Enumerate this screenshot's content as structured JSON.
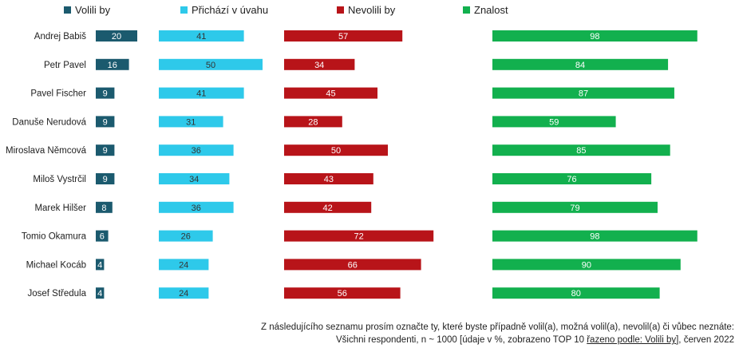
{
  "chart_data": {
    "type": "bar",
    "layout": "horizontal-grouped-panels",
    "categories": [
      "Andrej Babiš",
      "Petr Pavel",
      "Pavel Fischer",
      "Danuše Nerudová",
      "Miroslava Němcová",
      "Miloš Vystrčil",
      "Marek Hilšer",
      "Tomio Okamura",
      "Michael Kocáb",
      "Josef Středula"
    ],
    "series": [
      {
        "name": "Volili by",
        "color": "#1b5a6e",
        "values": [
          20,
          16,
          9,
          9,
          9,
          9,
          8,
          6,
          4,
          4
        ]
      },
      {
        "name": "Přichází v úvahu",
        "color": "#2ec9ea",
        "values": [
          41,
          50,
          41,
          31,
          36,
          34,
          36,
          26,
          24,
          24
        ]
      },
      {
        "name": "Nevolili by",
        "color": "#b81419",
        "values": [
          57,
          34,
          45,
          28,
          50,
          43,
          42,
          72,
          66,
          56
        ]
      },
      {
        "name": "Znalost",
        "color": "#12b04e",
        "values": [
          98,
          84,
          87,
          59,
          85,
          76,
          79,
          98,
          90,
          80
        ]
      }
    ],
    "unit": "%",
    "legend_position": "top"
  },
  "footnote": {
    "line1": "Z následujícího seznamu prosím označte ty, které byste případně volil(a), možná volil(a), nevolil(a) či vůbec neznáte:",
    "line2_prefix": "Všichni respondenti, n ~ 1000 [údaje v %, zobrazeno TOP 10 ",
    "line2_sort": "řazeno podle: Volili by",
    "line2_suffix": "], červen 2022"
  }
}
